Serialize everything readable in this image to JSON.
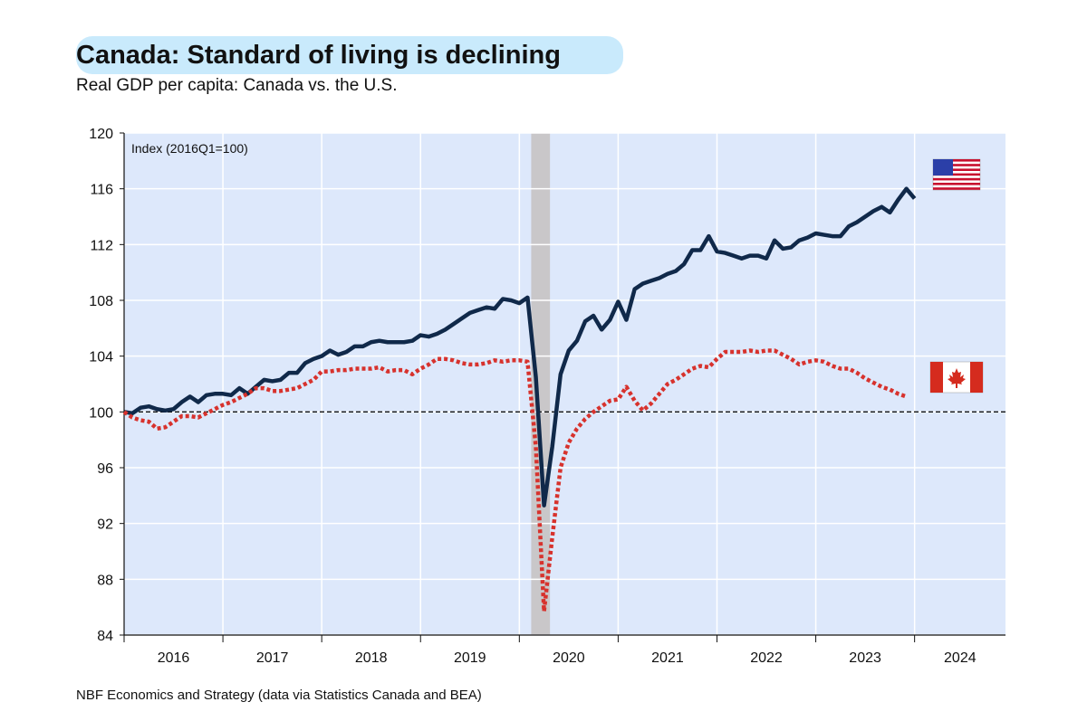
{
  "chart_data": {
    "type": "line",
    "title": "Canada: Standard of living is declining",
    "subtitle": "Real GDP per capita: Canada vs. the U.S.",
    "annotation": "Index (2016Q1=100)",
    "source": "NBF Economics and Strategy (data via Statistics Canada and BEA)",
    "x": [
      2016,
      2016.083,
      2016.167,
      2016.25,
      2016.333,
      2016.417,
      2016.5,
      2016.583,
      2016.667,
      2016.75,
      2016.833,
      2016.917,
      2017,
      2017.083,
      2017.167,
      2017.25,
      2017.333,
      2017.417,
      2017.5,
      2017.583,
      2017.667,
      2017.75,
      2017.833,
      2017.917,
      2018,
      2018.083,
      2018.167,
      2018.25,
      2018.333,
      2018.417,
      2018.5,
      2018.583,
      2018.667,
      2018.75,
      2018.833,
      2018.917,
      2019,
      2019.083,
      2019.167,
      2019.25,
      2019.333,
      2019.417,
      2019.5,
      2019.583,
      2019.667,
      2019.75,
      2019.833,
      2019.917,
      2020,
      2020.083,
      2020.167,
      2020.25,
      2020.333,
      2020.417,
      2020.5,
      2020.583,
      2020.667,
      2020.75,
      2020.833,
      2020.917,
      2021,
      2021.083,
      2021.167,
      2021.25,
      2021.333,
      2021.417,
      2021.5,
      2021.583,
      2021.667,
      2021.75,
      2021.833,
      2021.917,
      2022,
      2022.083,
      2022.167,
      2022.25,
      2022.333,
      2022.417,
      2022.5,
      2022.583,
      2022.667,
      2022.75,
      2022.833,
      2022.917,
      2023,
      2023.083,
      2023.167,
      2023.25,
      2023.333,
      2023.417,
      2023.5,
      2023.583,
      2023.667,
      2023.75,
      2023.833,
      2023.917,
      2024
    ],
    "series": [
      {
        "color": "#10294a",
        "style": "solid",
        "values": [
          100,
          99.9,
          100.3,
          100.4,
          100.2,
          100.1,
          100.2,
          100.7,
          101.1,
          100.7,
          101.2,
          101.3,
          101.3,
          101.2,
          101.7,
          101.3,
          101.8,
          102.3,
          102.2,
          102.3,
          102.8,
          102.8,
          103.5,
          103.8,
          104.0,
          104.4,
          104.1,
          104.3,
          104.7,
          104.7,
          105.0,
          105.1,
          105.0,
          105.0,
          105.0,
          105.1,
          105.5,
          105.4,
          105.6,
          105.9,
          106.3,
          106.7,
          107.1,
          107.3,
          107.5,
          107.4,
          108.1,
          108.0,
          107.8,
          108.2,
          102.5,
          93.3,
          97.5,
          102.7,
          104.4,
          105.1,
          106.5,
          106.9,
          105.9,
          106.6,
          107.9,
          106.6,
          108.8,
          109.2,
          109.4,
          109.6,
          109.9,
          110.1,
          110.6,
          111.6,
          111.6,
          112.6,
          111.5,
          111.4,
          111.2,
          111.0,
          111.2,
          111.2,
          111.0,
          112.3,
          111.7,
          111.8,
          112.3,
          112.5,
          112.8,
          112.7,
          112.6,
          112.6,
          113.3,
          113.6,
          114.0,
          114.4,
          114.7,
          114.3,
          115.2,
          116.0,
          115.3
        ]
      },
      {
        "color": "#d7322d",
        "style": "dotted",
        "values": [
          100,
          99.6,
          99.4,
          99.3,
          98.8,
          98.9,
          99.3,
          99.7,
          99.7,
          99.6,
          99.9,
          100.2,
          100.5,
          100.7,
          101.0,
          101.3,
          101.7,
          101.7,
          101.5,
          101.5,
          101.6,
          101.7,
          102.0,
          102.3,
          102.9,
          102.9,
          103.0,
          103.0,
          103.1,
          103.1,
          103.1,
          103.2,
          102.9,
          103.0,
          103.0,
          102.7,
          103.1,
          103.4,
          103.8,
          103.8,
          103.7,
          103.5,
          103.4,
          103.4,
          103.5,
          103.7,
          103.6,
          103.7,
          103.7,
          103.6,
          97.5,
          85.7,
          91.0,
          96.0,
          97.8,
          98.8,
          99.5,
          100.0,
          100.4,
          100.8,
          100.9,
          101.8,
          100.8,
          100.1,
          100.6,
          101.3,
          102.0,
          102.3,
          102.7,
          103.1,
          103.3,
          103.2,
          103.8,
          104.3,
          104.3,
          104.3,
          104.4,
          104.3,
          104.4,
          104.4,
          104.1,
          103.8,
          103.4,
          103.6,
          103.7,
          103.6,
          103.3,
          103.1,
          103.1,
          102.8,
          102.4,
          102.1,
          101.8,
          101.6,
          101.3,
          101.1,
          null
        ]
      }
    ],
    "xlim": [
      2016,
      2024.92
    ],
    "xticks": [
      2016,
      2017,
      2018,
      2019,
      2020,
      2021,
      2022,
      2023,
      2024
    ],
    "ylim": [
      84,
      120
    ],
    "yticks": [
      84,
      88,
      92,
      96,
      100,
      104,
      108,
      112,
      116,
      120
    ],
    "reference_line": 100,
    "shaded_period": [
      2020.12,
      2020.31
    ],
    "grid": true,
    "plot_background": "#dde8fb"
  }
}
